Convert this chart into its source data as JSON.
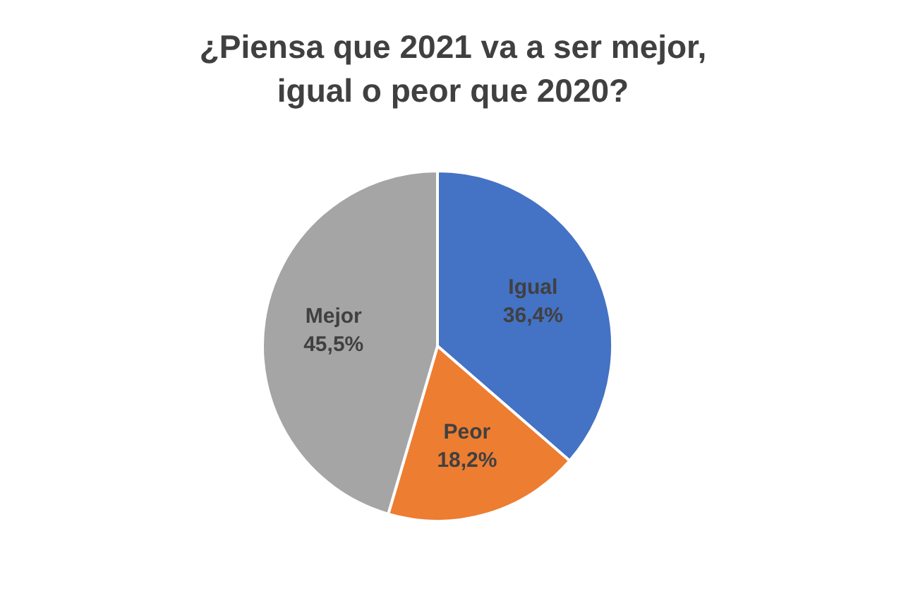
{
  "chart_data": {
    "type": "pie",
    "title": "¿Piensa que 2021 va a ser mejor, igual o peor que 2020?",
    "categories": [
      "Igual",
      "Peor",
      "Mejor"
    ],
    "values": [
      36.4,
      18.2,
      45.5
    ],
    "value_labels": [
      "36,4%",
      "18,2%",
      "45,5%"
    ],
    "colors": [
      "#4472c4",
      "#ed7d31",
      "#a5a5a5"
    ],
    "legend": false
  }
}
